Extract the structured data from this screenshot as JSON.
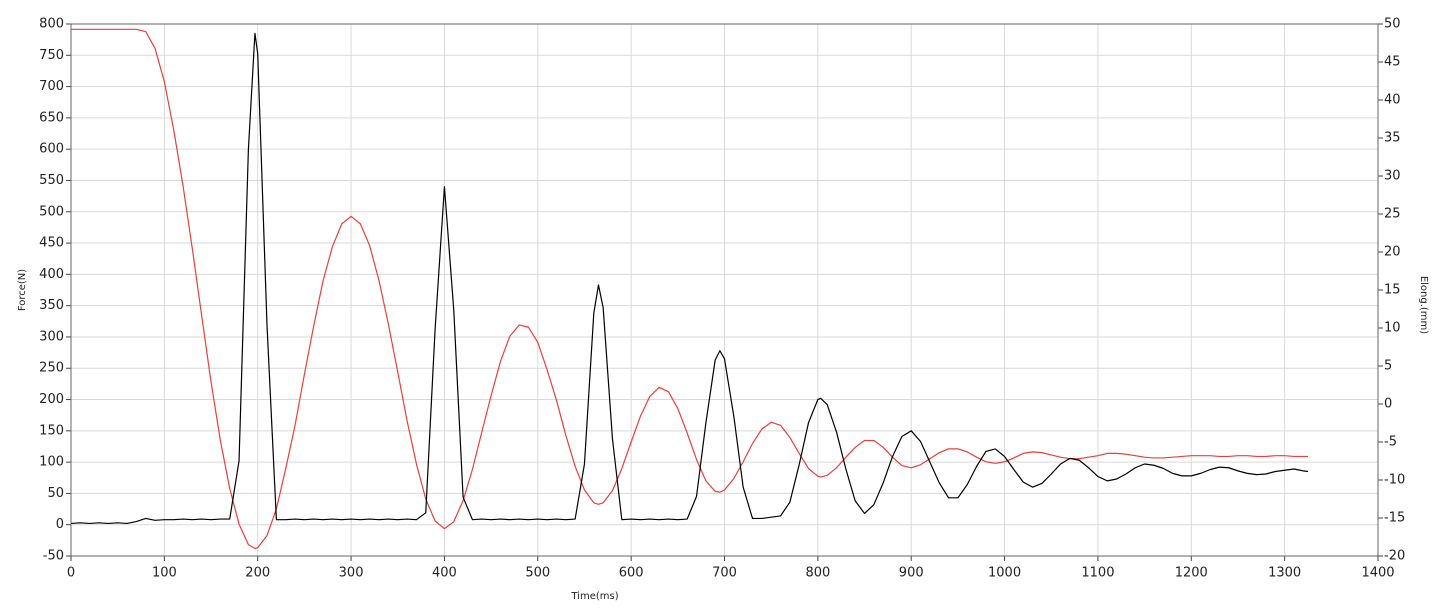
{
  "chart_data": {
    "type": "line",
    "x_label": "Time(ms)",
    "y_label": "Force(N)",
    "y2_label": "Elong.(mm)",
    "x": [
      0,
      10,
      20,
      30,
      40,
      50,
      60,
      70,
      80,
      90,
      100,
      110,
      120,
      130,
      140,
      150,
      160,
      170,
      180,
      190,
      197,
      200,
      210,
      220,
      230,
      240,
      250,
      260,
      270,
      280,
      290,
      300,
      310,
      320,
      330,
      340,
      350,
      360,
      370,
      380,
      390,
      400,
      410,
      420,
      430,
      440,
      450,
      460,
      470,
      480,
      490,
      500,
      510,
      520,
      530,
      540,
      550,
      560,
      565,
      570,
      580,
      590,
      600,
      610,
      620,
      630,
      640,
      650,
      660,
      670,
      680,
      690,
      695,
      700,
      710,
      720,
      730,
      740,
      750,
      760,
      770,
      780,
      790,
      800,
      803,
      810,
      820,
      830,
      840,
      850,
      860,
      870,
      880,
      890,
      900,
      910,
      920,
      930,
      940,
      950,
      960,
      970,
      980,
      990,
      1000,
      1010,
      1020,
      1030,
      1040,
      1050,
      1060,
      1070,
      1080,
      1090,
      1100,
      1110,
      1120,
      1130,
      1140,
      1150,
      1160,
      1170,
      1180,
      1190,
      1200,
      1210,
      1220,
      1230,
      1240,
      1250,
      1260,
      1270,
      1280,
      1290,
      1300,
      1310,
      1320,
      1325
    ],
    "series": [
      {
        "color": "#000000",
        "values": [
          2,
          3,
          2,
          3,
          2,
          3,
          2,
          5,
          10,
          7,
          8,
          8,
          9,
          8,
          9,
          8,
          9,
          9,
          102,
          599,
          785,
          753,
          317,
          8,
          8,
          9,
          8,
          9,
          8,
          9,
          8,
          9,
          8,
          9,
          8,
          9,
          8,
          9,
          8,
          19,
          312,
          540,
          343,
          44,
          8,
          9,
          8,
          9,
          8,
          9,
          8,
          9,
          8,
          9,
          8,
          9,
          97,
          338,
          383,
          347,
          137,
          8,
          9,
          8,
          9,
          8,
          9,
          8,
          9,
          45,
          162,
          263,
          278,
          265,
          173,
          60,
          10,
          10,
          12,
          14,
          36,
          96,
          163,
          200,
          202,
          192,
          148,
          89,
          38,
          18,
          32,
          67,
          109,
          141,
          150,
          133,
          100,
          67,
          43,
          43,
          64,
          93,
          117,
          121,
          109,
          88,
          68,
          60,
          66,
          81,
          97,
          106,
          103,
          91,
          77,
          70,
          73,
          81,
          91,
          97,
          95,
          90,
          82,
          78,
          78,
          82,
          88,
          92,
          91,
          86,
          82,
          80,
          81,
          85,
          87,
          89,
          86,
          85
        ]
      },
      {
        "color": "#e8403a",
        "axis": "y2",
        "values": [
          49.3,
          49.3,
          49.3,
          49.3,
          49.3,
          49.3,
          49.3,
          49.3,
          49.0,
          46.8,
          42.4,
          36.1,
          28.7,
          20.4,
          11.6,
          2.9,
          -4.8,
          -11.1,
          -15.8,
          -18.5,
          -19,
          -18.9,
          -17.3,
          -13.8,
          -8.5,
          -2.8,
          3.9,
          10.3,
          16.2,
          20.7,
          23.7,
          24.7,
          23.7,
          20.8,
          16.2,
          10.5,
          4.2,
          -2.2,
          -7.9,
          -12.5,
          -15.4,
          -16.4,
          -15.5,
          -12.7,
          -8.6,
          -3.7,
          1.1,
          5.6,
          8.9,
          10.4,
          10.1,
          8.1,
          4.5,
          0.5,
          -4.1,
          -8.2,
          -11.3,
          -13.0,
          -13.2,
          -13.0,
          -11.4,
          -8.5,
          -5.0,
          -1.6,
          1.0,
          2.2,
          1.6,
          -0.6,
          -3.8,
          -7.3,
          -10.1,
          -11.5,
          -11.6,
          -11.3,
          -9.8,
          -7.6,
          -5.2,
          -3.3,
          -2.4,
          -2.8,
          -4.4,
          -6.5,
          -8.5,
          -9.5,
          -9.6,
          -9.4,
          -8.4,
          -7.0,
          -5.7,
          -4.8,
          -4.8,
          -5.7,
          -7.0,
          -8.1,
          -8.4,
          -8.0,
          -7.2,
          -6.4,
          -5.9,
          -5.9,
          -6.3,
          -7.0,
          -7.6,
          -7.8,
          -7.6,
          -7.1,
          -6.5,
          -6.3,
          -6.4,
          -6.7,
          -7.0,
          -7.2,
          -7.2,
          -7.0,
          -6.8,
          -6.5,
          -6.5,
          -6.6,
          -6.8,
          -7.0,
          -7.1,
          -7.1,
          -7.0,
          -6.9,
          -6.8,
          -6.8,
          -6.8,
          -6.9,
          -6.9,
          -6.8,
          -6.8,
          -6.9,
          -6.9,
          -6.8,
          -6.8,
          -6.9,
          -6.9,
          -6.9
        ]
      }
    ],
    "xlim": [
      0,
      1400
    ],
    "xticks": [
      0,
      100,
      200,
      300,
      400,
      500,
      600,
      700,
      800,
      900,
      1000,
      1100,
      1200,
      1300,
      1400
    ],
    "ylim": [
      -50,
      800
    ],
    "yticks": [
      -50,
      0,
      50,
      100,
      150,
      200,
      250,
      300,
      350,
      400,
      450,
      500,
      550,
      600,
      650,
      700,
      750,
      800
    ],
    "y2lim": [
      -20,
      50
    ],
    "y2ticks": [
      -20,
      -15,
      -10,
      -5,
      0,
      5,
      10,
      15,
      20,
      25,
      30,
      35,
      40,
      45,
      50
    ],
    "grid": true
  }
}
